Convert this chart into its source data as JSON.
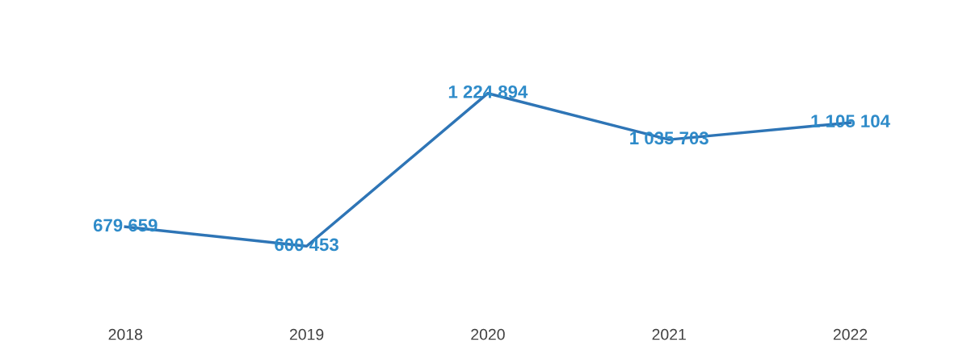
{
  "chart_data": {
    "type": "line",
    "categories": [
      "2018",
      "2019",
      "2020",
      "2021",
      "2022"
    ],
    "series": [
      {
        "color": "#2e75b6",
        "values": [
          679659,
          600453,
          1224894,
          1035703,
          1105104
        ],
        "value_labels": [
          "679 659",
          "600 453",
          "1 224 894",
          "1 035 703",
          "1 105 104"
        ]
      }
    ],
    "grid": false,
    "legend": false,
    "marker": "none",
    "line_style": "solid"
  }
}
